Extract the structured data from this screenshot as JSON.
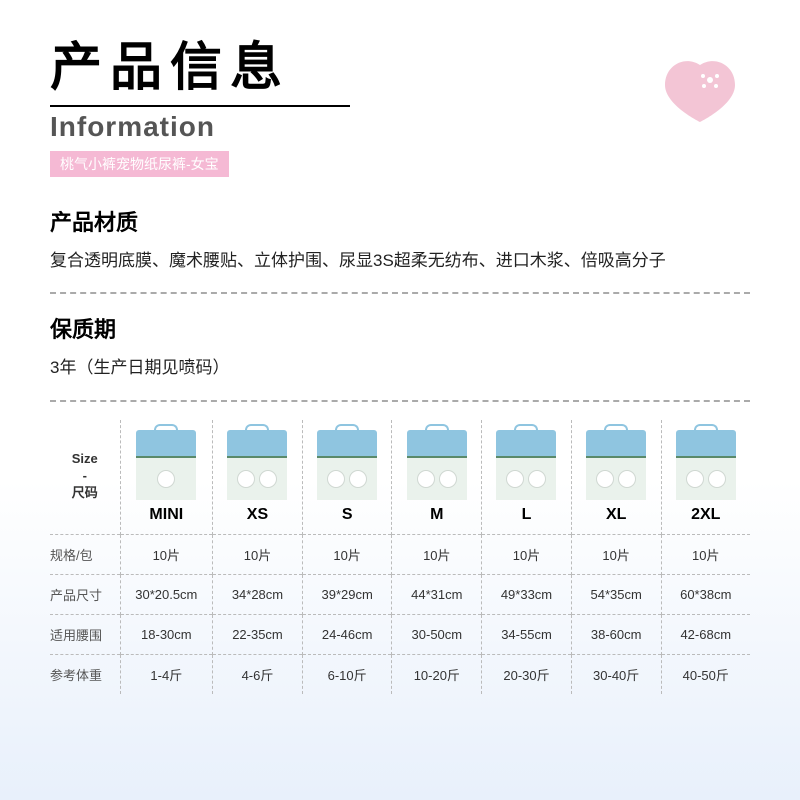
{
  "header": {
    "title_cn": "产品信息",
    "title_en": "Information",
    "subtitle": "桃气小裤宠物纸尿裤-女宝"
  },
  "colors": {
    "subtitle_bg": "#f5b9d4",
    "logo_heart": "#f3c5d5",
    "pkg_top": "#8fc5e0",
    "pkg_bottom": "#eaf2ec",
    "pkg_border": "#5a8a6a",
    "dashed": "#aaaaaa"
  },
  "sections": {
    "material": {
      "title": "产品材质",
      "text": "复合透明底膜、魔术腰贴、立体护围、尿显3S超柔无纺布、进口木浆、倍吸高分子"
    },
    "shelflife": {
      "title": "保质期",
      "text": "3年（生产日期见喷码）"
    }
  },
  "size_table": {
    "header_label_line1": "Size",
    "header_label_line2": "-",
    "header_label_line3": "尺码",
    "sizes": [
      "MINI",
      "XS",
      "S",
      "M",
      "L",
      "XL",
      "2XL"
    ],
    "rows": [
      {
        "label": "规格/包",
        "values": [
          "10片",
          "10片",
          "10片",
          "10片",
          "10片",
          "10片",
          "10片"
        ]
      },
      {
        "label": "产品尺寸",
        "values": [
          "30*20.5cm",
          "34*28cm",
          "39*29cm",
          "44*31cm",
          "49*33cm",
          "54*35cm",
          "60*38cm"
        ]
      },
      {
        "label": "适用腰围",
        "values": [
          "18-30cm",
          "22-35cm",
          "24-46cm",
          "30-50cm",
          "34-55cm",
          "38-60cm",
          "42-68cm"
        ]
      },
      {
        "label": "参考体重",
        "values": [
          "1-4斤",
          "4-6斤",
          "6-10斤",
          "10-20斤",
          "20-30斤",
          "30-40斤",
          "40-50斤"
        ]
      }
    ]
  }
}
